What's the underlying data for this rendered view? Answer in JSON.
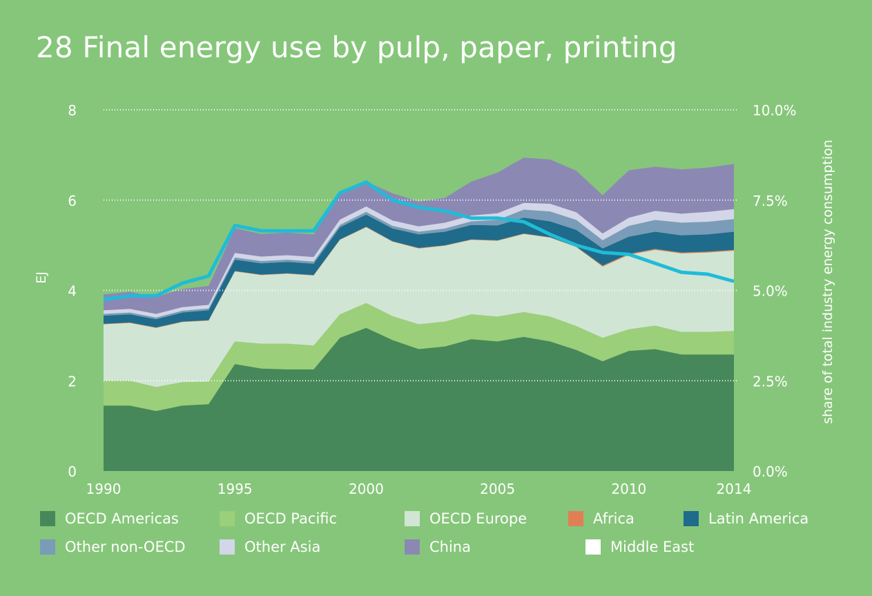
{
  "title": "28 Final energy use by pulp, paper, printing",
  "colors": {
    "background": "#86c67a",
    "gridline": "#ffffff",
    "share_line": "#1fbcd8"
  },
  "chart_data": {
    "type": "area",
    "title": "28 Final energy use by pulp, paper, printing",
    "xlabel": "",
    "ylabel": "EJ",
    "y2label": "share of total industry energy consumption",
    "x_ticks": [
      "1990",
      "1995",
      "2000",
      "2005",
      "2010",
      "2014"
    ],
    "y_ticks": [
      "0",
      "2",
      "4",
      "6",
      "8"
    ],
    "y2_ticks": [
      "0.0%",
      "2.5%",
      "5.0%",
      "7.5%",
      "10.0%"
    ],
    "ylim": [
      0,
      8
    ],
    "y2lim": [
      0,
      10
    ],
    "grid": "dotted horizontal",
    "legend_position": "bottom",
    "x": [
      1990,
      1991,
      1992,
      1993,
      1994,
      1995,
      1996,
      1997,
      1998,
      1999,
      2000,
      2001,
      2002,
      2003,
      2004,
      2005,
      2006,
      2007,
      2008,
      2009,
      2010,
      2011,
      2012,
      2013,
      2014
    ],
    "series": [
      {
        "name": "OECD Americas",
        "color": "#46885a",
        "values": [
          1.45,
          1.45,
          1.33,
          1.45,
          1.48,
          2.37,
          2.27,
          2.25,
          2.25,
          2.95,
          3.17,
          2.9,
          2.7,
          2.76,
          2.92,
          2.87,
          2.97,
          2.87,
          2.68,
          2.43,
          2.66,
          2.7,
          2.58,
          2.58,
          2.58
        ]
      },
      {
        "name": "OECD Pacific",
        "color": "#9bcf79",
        "values": [
          0.55,
          0.55,
          0.53,
          0.52,
          0.5,
          0.5,
          0.55,
          0.57,
          0.53,
          0.52,
          0.55,
          0.53,
          0.55,
          0.55,
          0.55,
          0.55,
          0.55,
          0.55,
          0.53,
          0.52,
          0.48,
          0.52,
          0.5,
          0.5,
          0.52
        ]
      },
      {
        "name": "OECD Europe",
        "color": "#d1e5d5",
        "values": [
          1.25,
          1.28,
          1.31,
          1.33,
          1.35,
          1.55,
          1.52,
          1.55,
          1.55,
          1.65,
          1.68,
          1.65,
          1.68,
          1.68,
          1.65,
          1.68,
          1.73,
          1.75,
          1.75,
          1.58,
          1.65,
          1.68,
          1.74,
          1.76,
          1.78
        ]
      },
      {
        "name": "Africa",
        "color": "#e07f54",
        "values": [
          0.01,
          0.01,
          0.01,
          0.01,
          0.01,
          0.01,
          0.01,
          0.01,
          0.01,
          0.01,
          0.01,
          0.01,
          0.01,
          0.01,
          0.01,
          0.01,
          0.01,
          0.01,
          0.01,
          0.02,
          0.02,
          0.02,
          0.02,
          0.02,
          0.02
        ]
      },
      {
        "name": "Latin America",
        "color": "#1f6b8c",
        "values": [
          0.18,
          0.18,
          0.18,
          0.2,
          0.22,
          0.25,
          0.25,
          0.25,
          0.25,
          0.27,
          0.27,
          0.28,
          0.3,
          0.3,
          0.32,
          0.33,
          0.35,
          0.35,
          0.37,
          0.38,
          0.38,
          0.38,
          0.38,
          0.38,
          0.4
        ]
      },
      {
        "name": "Other non-OECD",
        "color": "#7a9cb8",
        "values": [
          0.04,
          0.04,
          0.04,
          0.04,
          0.04,
          0.05,
          0.05,
          0.05,
          0.05,
          0.05,
          0.06,
          0.06,
          0.06,
          0.07,
          0.08,
          0.12,
          0.18,
          0.22,
          0.22,
          0.18,
          0.24,
          0.26,
          0.28,
          0.28,
          0.28
        ]
      },
      {
        "name": "Other Asia",
        "color": "#d2d6e8",
        "values": [
          0.08,
          0.08,
          0.08,
          0.08,
          0.08,
          0.1,
          0.1,
          0.1,
          0.1,
          0.12,
          0.12,
          0.12,
          0.12,
          0.13,
          0.13,
          0.15,
          0.15,
          0.17,
          0.17,
          0.15,
          0.18,
          0.2,
          0.2,
          0.22,
          0.22
        ]
      },
      {
        "name": "China",
        "color": "#8c88b4",
        "values": [
          0.35,
          0.38,
          0.38,
          0.4,
          0.42,
          0.55,
          0.5,
          0.5,
          0.5,
          0.55,
          0.55,
          0.6,
          0.55,
          0.55,
          0.75,
          0.9,
          1.0,
          0.98,
          0.92,
          0.85,
          1.05,
          0.98,
          0.98,
          0.98,
          1.0
        ]
      },
      {
        "name": "Middle East",
        "color": "#ffffff",
        "values": [
          0,
          0,
          0,
          0,
          0,
          0,
          0,
          0,
          0,
          0,
          0,
          0,
          0,
          0,
          0,
          0,
          0,
          0,
          0,
          0,
          0,
          0,
          0,
          0,
          0
        ]
      }
    ],
    "share_line": {
      "axis": "right",
      "color": "#1fbcd8",
      "values": [
        4.75,
        4.85,
        4.85,
        5.2,
        5.4,
        6.8,
        6.65,
        6.65,
        6.65,
        7.7,
        8.0,
        7.5,
        7.3,
        7.2,
        7.0,
        7.0,
        6.9,
        6.55,
        6.25,
        6.05,
        6.0,
        5.75,
        5.5,
        5.45,
        5.25
      ]
    }
  },
  "legend": [
    {
      "label": "OECD Americas",
      "color": "#46885a"
    },
    {
      "label": "OECD Pacific",
      "color": "#9bcf79"
    },
    {
      "label": "OECD Europe",
      "color": "#d1e5d5"
    },
    {
      "label": "Africa",
      "color": "#e07f54"
    },
    {
      "label": "Latin America",
      "color": "#1f6b8c"
    },
    {
      "label": "Other non-OECD",
      "color": "#7a9cb8"
    },
    {
      "label": "Other Asia",
      "color": "#d2d6e8"
    },
    {
      "label": "China",
      "color": "#8c88b4"
    },
    {
      "label": "Middle East",
      "color": "#ffffff"
    }
  ]
}
